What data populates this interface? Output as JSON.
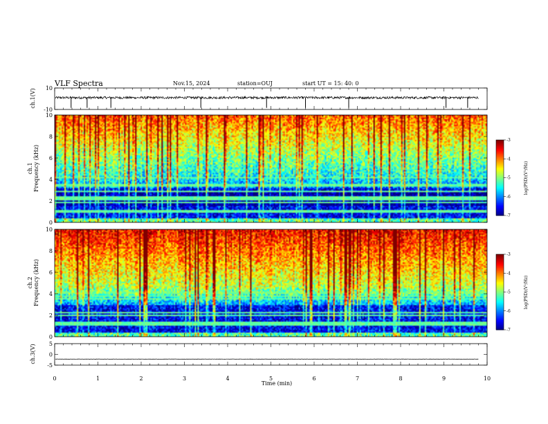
{
  "header": {
    "title": "VLF Spectra",
    "date": "Nov.15, 2024",
    "station": "station=OUJ",
    "start": "start  UT =  15: 40: 0"
  },
  "chart_data": [
    {
      "id": "ch1-waveform",
      "type": "line",
      "ylabel": "ch.1(V)",
      "ylim": [
        -10,
        10
      ],
      "yticks": [
        -10,
        10
      ],
      "xlim": [
        0,
        10
      ],
      "baseline": 1,
      "data_end_min": 9.8,
      "spikes_min": [
        0.38,
        0.75,
        1.3,
        3.38,
        4.9,
        5.8,
        6.8,
        9.05,
        9.55
      ]
    },
    {
      "id": "ch1-spectrogram",
      "type": "heatmap",
      "title": "ch.1",
      "ylabel": "Frequency (kHz)",
      "ylim": [
        0,
        10
      ],
      "yticks": [
        0,
        2,
        4,
        6,
        8,
        10
      ],
      "xlim": [
        0,
        10
      ],
      "colorbar": {
        "label": "log(PSD)(V²/Hz)",
        "range": [
          -7,
          -3
        ],
        "ticks": [
          -7,
          -6,
          -5,
          -4,
          -3
        ]
      }
    },
    {
      "id": "ch2-spectrogram",
      "type": "heatmap",
      "title": "ch.2",
      "ylabel": "Frequency (kHz)",
      "ylim": [
        0,
        10
      ],
      "yticks": [
        0,
        2,
        4,
        6,
        8,
        10
      ],
      "xlim": [
        0,
        10
      ],
      "colorbar": {
        "label": "log(PSD)(V²/Hz)",
        "range": [
          -7,
          -3
        ],
        "ticks": [
          -7,
          -6,
          -5,
          -4,
          -3
        ]
      }
    },
    {
      "id": "ch3-waveform",
      "type": "line",
      "ylabel": "ch.3(V)",
      "ylim": [
        -5,
        5
      ],
      "yticks": [
        -5,
        0,
        5
      ],
      "xlim": [
        0,
        10
      ],
      "baseline": -2.2,
      "data_end_min": 9.8
    }
  ],
  "xaxis": {
    "label": "Time  (min)",
    "ticks": [
      0,
      1,
      2,
      3,
      4,
      5,
      6,
      7,
      8,
      9,
      10
    ]
  }
}
